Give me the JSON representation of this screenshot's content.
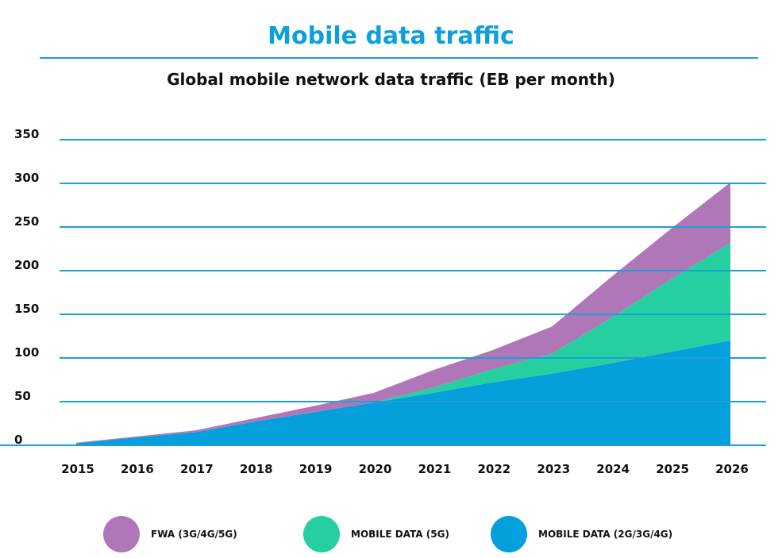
{
  "chart_data": {
    "type": "area",
    "stacked": true,
    "title": "Mobile data traffic",
    "subtitle": "Global mobile network data traffic (EB per month)",
    "xlabel": "",
    "ylabel": "",
    "ylim": [
      0,
      350
    ],
    "yticks": [
      0,
      50,
      100,
      150,
      200,
      250,
      300,
      350
    ],
    "grid": true,
    "legend_position": "bottom",
    "categories": [
      "2015",
      "2016",
      "2017",
      "2018",
      "2019",
      "2020",
      "2021",
      "2022",
      "2023",
      "2024",
      "2025",
      "2026"
    ],
    "series": [
      {
        "name": "MOBILE DATA (2G/3G/4G)",
        "color": "#059fdb",
        "values": [
          2,
          9,
          15,
          27,
          38,
          49,
          60,
          72,
          82,
          94,
          107,
          120
        ]
      },
      {
        "name": "MOBILE DATA (5G)",
        "color": "#25cfa0",
        "values": [
          0,
          0,
          0,
          0,
          0,
          0,
          6,
          15,
          23,
          52,
          83,
          112
        ]
      },
      {
        "name": "FWA (3G/4G/5G)",
        "color": "#b077b8",
        "values": [
          1,
          1,
          2,
          4,
          7,
          11,
          20,
          22,
          31,
          47,
          58,
          69
        ]
      }
    ],
    "legend_order": [
      2,
      1,
      0
    ]
  },
  "colors": {
    "title": "#0b9fdc",
    "grid": "#1aa0d8"
  }
}
